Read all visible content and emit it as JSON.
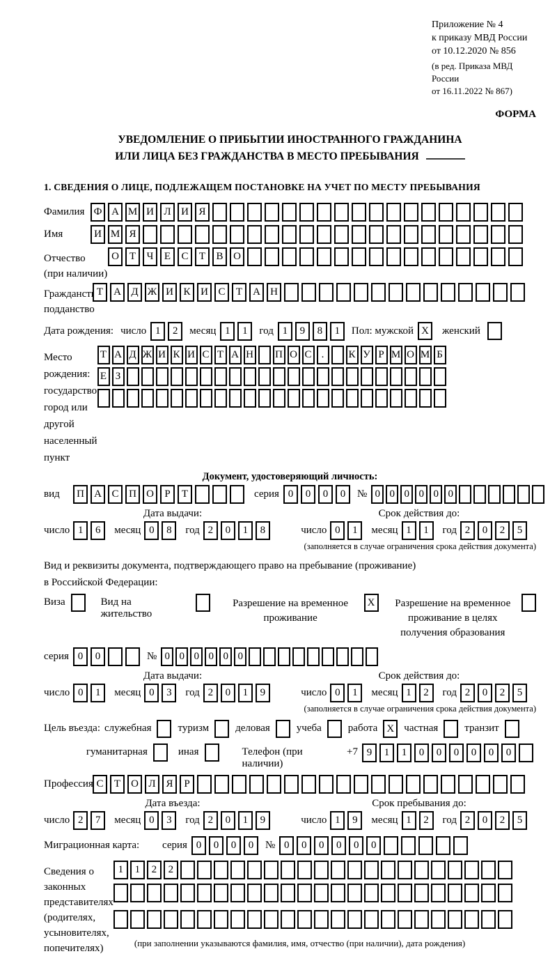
{
  "labels": {
    "day": "число",
    "month": "месяц",
    "year": "год",
    "seriya": "серия",
    "number": "№",
    "issue_date": "Дата выдачи:",
    "valid_until": "Срок действия до:",
    "limit_note": "(заполняется в случае ограничения срока действия документа)",
    "entry_date": "Дата въезда:",
    "stay_until": "Срок пребывания до:"
  },
  "header": {
    "appendix_lines": [
      "Приложение № 4",
      "к приказу МВД России",
      "от 10.12.2020 № 856"
    ],
    "revision_lines": [
      "(в ред. Приказа МВД России",
      "от 16.11.2022 № 867)"
    ],
    "form_word": "ФОРМА"
  },
  "title": {
    "line1": "УВЕДОМЛЕНИЕ О ПРИБЫТИИ ИНОСТРАННОГО ГРАЖДАНИНА",
    "line2": "ИЛИ ЛИЦА БЕЗ ГРАЖДАНСТВА В МЕСТО ПРЕБЫВАНИЯ"
  },
  "section1": {
    "heading": "1. СВЕДЕНИЯ О ЛИЦЕ, ПОДЛЕЖАЩЕМ ПОСТАНОВКЕ НА УЧЕТ ПО МЕСТУ ПРЕБЫВАНИЯ"
  },
  "person": {
    "surname": {
      "label": "Фамилия",
      "value": "ФАМИЛИЯ",
      "cells": 25
    },
    "name": {
      "label": "Имя",
      "value": "ИМЯ",
      "cells": 25
    },
    "patronymic": {
      "label1": "Отчество",
      "label2": "(при наличии)",
      "value": "ОТЧЕСТВО",
      "cells": 24
    },
    "citizenship": {
      "label1": "Гражданство,",
      "label2": "подданство",
      "value": "ТАДЖИКИСТАН",
      "cells": 25
    },
    "birth_date": {
      "label": "Дата рождения:",
      "day": {
        "value": "12",
        "cells": 2
      },
      "month": {
        "value": "11",
        "cells": 2
      },
      "year": {
        "value": "1981",
        "cells": 4
      }
    },
    "sex": {
      "label": "Пол: мужской",
      "male_mark": "X",
      "female_label": "женский",
      "female_mark": ""
    },
    "birth_place": {
      "label_lines": [
        "Место рождения:",
        "государство",
        "город или другой",
        "населенный пункт"
      ],
      "rows": [
        {
          "value": "ТАДЖИКИСТАН ПОС. КУРМОМБ",
          "cells": 24
        },
        {
          "value": "ЕЗ",
          "cells": 24
        },
        {
          "value": "",
          "cells": 24
        }
      ]
    }
  },
  "identity_doc": {
    "heading": "Документ, удостоверяющий личность:",
    "kind": {
      "label": "вид",
      "value": "ПАСПОРТ",
      "cells": 10
    },
    "seriya": {
      "value": "0000",
      "cells": 4
    },
    "number": {
      "value": "000000",
      "cells": 12
    },
    "issue": {
      "day": {
        "value": "16",
        "cells": 2
      },
      "month": {
        "value": "08",
        "cells": 2
      },
      "year": {
        "value": "2018",
        "cells": 4
      }
    },
    "valid": {
      "day": {
        "value": "01",
        "cells": 2
      },
      "month": {
        "value": "11",
        "cells": 2
      },
      "year": {
        "value": "2025",
        "cells": 4
      }
    }
  },
  "residence_doc": {
    "intro1": "Вид и реквизиты документа, подтверждающего право на пребывание (проживание)",
    "intro2": "в Российской Федерации:",
    "options": [
      {
        "label": "Виза",
        "mark": ""
      },
      {
        "label": "Вид на жительство",
        "mark": ""
      },
      {
        "label": "Разрешение на временное проживание",
        "mark": "X"
      },
      {
        "label": "Разрешение на временное проживание в целях получения образования",
        "mark": ""
      }
    ],
    "seriya": {
      "value": "00",
      "cells": 4
    },
    "number": {
      "value": "000000",
      "cells": 15
    },
    "issue": {
      "day": {
        "value": "01",
        "cells": 2
      },
      "month": {
        "value": "03",
        "cells": 2
      },
      "year": {
        "value": "2019",
        "cells": 4
      }
    },
    "valid": {
      "day": {
        "value": "01",
        "cells": 2
      },
      "month": {
        "value": "12",
        "cells": 2
      },
      "year": {
        "value": "2025",
        "cells": 4
      }
    }
  },
  "visit": {
    "label": "Цель въезда:",
    "options_row1": [
      {
        "label": "служебная",
        "mark": ""
      },
      {
        "label": "туризм",
        "mark": ""
      },
      {
        "label": "деловая",
        "mark": ""
      },
      {
        "label": "учеба",
        "mark": ""
      },
      {
        "label": "работа",
        "mark": "X"
      },
      {
        "label": "частная",
        "mark": ""
      },
      {
        "label": "транзит",
        "mark": ""
      }
    ],
    "options_row2": [
      {
        "label": "гуманитарная",
        "mark": ""
      },
      {
        "label": "иная",
        "mark": ""
      }
    ],
    "phone": {
      "label": "Телефон (при наличии)",
      "prefix": "+7",
      "value": "911000000",
      "cells": 10
    },
    "profession": {
      "label": "Профессия",
      "value": "СТОЛЯР",
      "cells": 25
    },
    "entry": {
      "day": {
        "value": "27",
        "cells": 2
      },
      "month": {
        "value": "03",
        "cells": 2
      },
      "year": {
        "value": "2019",
        "cells": 4
      }
    },
    "stay": {
      "day": {
        "value": "19",
        "cells": 2
      },
      "month": {
        "value": "12",
        "cells": 2
      },
      "year": {
        "value": "2025",
        "cells": 4
      }
    }
  },
  "migration_card": {
    "label": "Миграционная карта:",
    "seriya": {
      "value": "0000",
      "cells": 4
    },
    "number": {
      "value": "000000",
      "cells": 11
    }
  },
  "representatives": {
    "label_lines": [
      "Сведения о",
      "законных",
      "представителях",
      "(родителях,",
      "усыновителях,",
      "попечителях)"
    ],
    "rows": [
      {
        "value": "1122",
        "cells": 24
      },
      {
        "value": "",
        "cells": 24
      },
      {
        "value": "",
        "cells": 24
      }
    ],
    "note": "(при заполнении указываются фамилия, имя, отчество (при наличии), дата рождения)"
  }
}
